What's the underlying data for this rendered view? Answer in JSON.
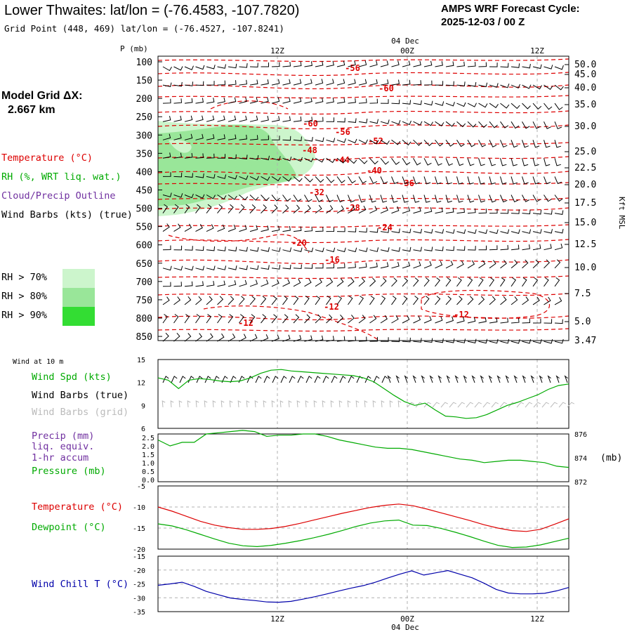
{
  "header": {
    "title": "Lower Thwaites:  lat/lon = (-76.4583, -107.7820)",
    "subtitle": "Grid Point (448, 469) lat/lon = (-76.4527, -107.8241)",
    "cycle_line1": "AMPS WRF Forecast Cycle:",
    "cycle_line2": "2025-12-03 / 00  Z"
  },
  "colors": {
    "temperature": "#dd0000",
    "rh": "#00aa00",
    "cloud": "#7030a0",
    "gray": "#bbbbbb",
    "windchill": "#0000aa"
  },
  "left_panel": {
    "model_grid_label": "Model Grid ΔX:",
    "model_grid_value": "2.667 km",
    "temperature_label": "Temperature (°C)",
    "rh_label": "RH (%, WRT liq. wat.)",
    "cloud_label": "Cloud/Precip Outline",
    "wind_label": "Wind Barbs (kts) (true)",
    "rh_legend": [
      "RH > 70%",
      "RH > 80%",
      "RH > 90%"
    ],
    "rh_legend_colors": [
      "#ccf5cc",
      "#99e699",
      "#33dd33"
    ]
  },
  "time_axis": {
    "top_date": "04 Dec",
    "bottom_date": "04 Dec",
    "ticks": [
      "12Z",
      "00Z",
      "12Z"
    ]
  },
  "chart_data": [
    {
      "type": "heatmap",
      "ylabel_left": "P (mb)",
      "ylabel_right": "Kft MSL",
      "pressure_levels": [
        100,
        150,
        200,
        250,
        300,
        350,
        400,
        450,
        500,
        550,
        600,
        650,
        700,
        750,
        800,
        850
      ],
      "height_labels": [
        "50.0",
        "45.0",
        "40.0",
        "35.0",
        "30.0",
        "25.0",
        "22.5",
        "20.0",
        "17.5",
        "15.0",
        "12.5",
        "10.0",
        "7.5",
        "5.0",
        "3.47"
      ],
      "temperature_contour_labels": [
        "-56",
        "-60",
        "-60",
        "-56",
        "-52",
        "-48",
        "-44",
        "-40",
        "-36",
        "-32",
        "-28",
        "-24",
        "-20",
        "-16",
        "-12",
        "-12",
        "-12"
      ]
    },
    {
      "type": "line",
      "section_label": "Wind at 10 m",
      "legend": [
        "Wind Spd (kts)",
        "Wind Barbs (true)",
        "Wind Barbs (grid)"
      ],
      "yticks": [
        "15",
        "12",
        "9",
        "6"
      ],
      "ylim": [
        6,
        15
      ],
      "series": [
        {
          "name": "Wind Spd (kts)",
          "values": [
            12.6,
            12.3,
            11.2,
            12.3,
            12.5,
            12.4,
            12.2,
            12.1,
            12.2,
            12.6,
            13.2,
            13.6,
            13.7,
            13.5,
            13.4,
            13.3,
            13.2,
            13.1,
            13.0,
            12.9,
            12.6,
            12.1,
            11.2,
            10.3,
            9.5,
            9.0,
            9.3,
            8.4,
            7.6,
            7.5,
            7.3,
            7.4,
            7.8,
            8.4,
            9.0,
            9.4,
            9.9,
            10.4,
            11.1,
            11.6,
            11.8
          ]
        }
      ]
    },
    {
      "type": "line",
      "legend": [
        "Precip (mm)",
        "liq. equiv.",
        "1-hr accum",
        "Pressure (mb)"
      ],
      "yticks_left": [
        "2.5",
        "2.0",
        "1.5",
        "1.0",
        "0.5",
        "0.0"
      ],
      "yticks_right": [
        "876",
        "874",
        "872"
      ],
      "ylabel_right": "(mb)",
      "ylim": [
        872,
        876
      ],
      "series": [
        {
          "name": "Pressure (mb)",
          "values": [
            875.5,
            875.0,
            875.3,
            875.3,
            876.0,
            876.1,
            876.2,
            876.3,
            876.2,
            875.8,
            875.9,
            875.9,
            876.0,
            876.0,
            875.8,
            875.5,
            875.3,
            875.1,
            874.9,
            874.8,
            874.8,
            874.7,
            874.5,
            874.3,
            874.1,
            873.9,
            873.8,
            873.6,
            873.7,
            873.8,
            873.8,
            873.7,
            873.6,
            873.3,
            873.2
          ]
        }
      ]
    },
    {
      "type": "line",
      "legend": [
        "Temperature (°C)",
        "Dewpoint (°C)"
      ],
      "yticks": [
        "-5",
        "-10",
        "-15",
        "-20"
      ],
      "ylim": [
        -20,
        -5
      ],
      "series": [
        {
          "name": "Temperature (°C)",
          "values": [
            -10.0,
            -11.0,
            -12.2,
            -13.4,
            -14.3,
            -14.9,
            -15.3,
            -15.3,
            -15.1,
            -14.6,
            -13.9,
            -13.1,
            -12.3,
            -11.5,
            -10.8,
            -10.1,
            -9.6,
            -9.3,
            -9.7,
            -10.5,
            -11.4,
            -12.3,
            -13.2,
            -14.2,
            -15.0,
            -15.6,
            -15.8,
            -15.3,
            -14.1,
            -12.8
          ]
        },
        {
          "name": "Dewpoint (°C)",
          "values": [
            -14.0,
            -14.5,
            -15.4,
            -16.5,
            -17.6,
            -18.6,
            -19.2,
            -19.4,
            -19.1,
            -18.6,
            -18.0,
            -17.3,
            -16.5,
            -15.6,
            -14.6,
            -13.8,
            -13.3,
            -13.1,
            -14.3,
            -14.4,
            -15.1,
            -16.0,
            -17.0,
            -18.1,
            -19.1,
            -19.6,
            -19.5,
            -19.0,
            -18.2,
            -17.4
          ]
        }
      ]
    },
    {
      "type": "line",
      "legend": [
        "Wind Chill T (°C)"
      ],
      "yticks": [
        "-15",
        "-20",
        "-25",
        "-30",
        "-35"
      ],
      "ylim": [
        -35,
        -15
      ],
      "series": [
        {
          "name": "Wind Chill T (°C)",
          "values": [
            -25.5,
            -25.0,
            -24.4,
            -25.9,
            -27.7,
            -28.9,
            -30.1,
            -30.6,
            -31.0,
            -31.5,
            -31.6,
            -31.3,
            -30.5,
            -29.6,
            -28.6,
            -27.5,
            -26.5,
            -25.6,
            -24.4,
            -22.9,
            -21.5,
            -20.3,
            -21.8,
            -21.0,
            -20.2,
            -21.5,
            -22.8,
            -24.8,
            -27.0,
            -28.3,
            -28.6,
            -28.6,
            -28.4,
            -27.5,
            -26.3
          ]
        }
      ]
    }
  ]
}
